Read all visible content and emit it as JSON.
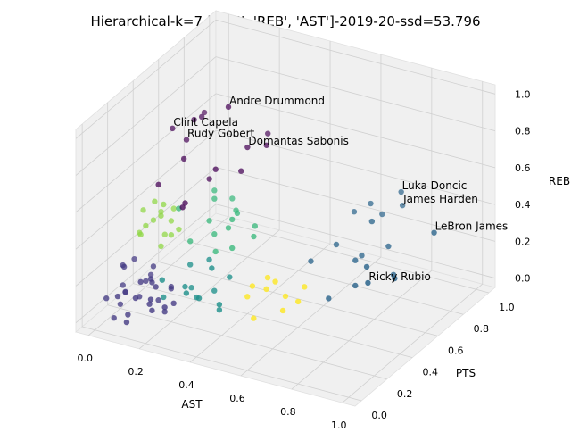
{
  "chart_data": {
    "type": "scatter3d",
    "title": "Hierarchical-k=7-['PTS', 'REB', 'AST']-2019-20-ssd=53.796",
    "xlabel": "AST",
    "ylabel": "PTS",
    "zlabel": "REB",
    "xlim": [
      -0.05,
      1.05
    ],
    "ylim": [
      -0.05,
      1.05
    ],
    "zlim": [
      -0.05,
      1.05
    ],
    "xticks": [
      {
        "value": 0,
        "label": "0.0"
      },
      0.2,
      0.4,
      0.6,
      0.8,
      {
        "value": 1,
        "label": "1.0"
      }
    ],
    "yticks": [
      {
        "value": 0,
        "label": "0.0"
      },
      0.2,
      0.4,
      0.6,
      0.8,
      {
        "value": 1,
        "label": "1.0"
      }
    ],
    "zticks": [
      {
        "value": 0,
        "label": "0.0"
      },
      0.2,
      0.4,
      0.6,
      0.8,
      {
        "value": 1,
        "label": "1.0"
      }
    ],
    "grid": true,
    "series": [
      {
        "color": "#443a83",
        "x": [
          0.02,
          0.05,
          0.08,
          0.1,
          0.12,
          0.15,
          0.18,
          0.2,
          0.22,
          0.03,
          0.06,
          0.09,
          0.13,
          0.16,
          0.19,
          0.04,
          0.07,
          0.11,
          0.14,
          0.17,
          0.21,
          0.24,
          0.01,
          0.1,
          0.05,
          0.12,
          0.08,
          0.15,
          0.18,
          0.03
        ],
        "y": [
          0.05,
          0.1,
          0.02,
          0.15,
          0.08,
          0.2,
          0.12,
          0.05,
          0.18,
          0.25,
          0.03,
          0.22,
          0.1,
          0.28,
          0.06,
          0.15,
          0.3,
          0.04,
          0.17,
          0.09,
          0.13,
          0.07,
          0.2,
          0.26,
          0.12,
          0.01,
          0.08,
          0.14,
          0.24,
          0.18
        ],
        "z": [
          0.1,
          0.05,
          0.15,
          0.08,
          0.12,
          0.05,
          0.18,
          0.1,
          0.07,
          0.2,
          0.02,
          0.12,
          0.2,
          0.08,
          0.15,
          0.22,
          0.1,
          0.05,
          0.16,
          0.1,
          0.05,
          0.12,
          0.08,
          0.18,
          0.25,
          0.03,
          0.14,
          0.2,
          0.1,
          0.06
        ]
      },
      {
        "color": "#8fd744",
        "x": [
          0.05,
          0.08,
          0.1,
          0.12,
          0.06,
          0.14,
          0.09,
          0.11,
          0.07,
          0.13,
          0.04,
          0.1,
          0.15,
          0.08,
          0.12
        ],
        "y": [
          0.25,
          0.3,
          0.35,
          0.28,
          0.4,
          0.32,
          0.22,
          0.38,
          0.33,
          0.26,
          0.3,
          0.42,
          0.36,
          0.2,
          0.3
        ],
        "z": [
          0.35,
          0.4,
          0.3,
          0.45,
          0.38,
          0.33,
          0.42,
          0.36,
          0.48,
          0.3,
          0.44,
          0.4,
          0.34,
          0.38,
          0.5
        ]
      },
      {
        "color": "#35b779",
        "x": [
          0.2,
          0.25,
          0.3,
          0.22,
          0.35,
          0.28,
          0.18,
          0.32,
          0.26,
          0.38,
          0.24,
          0.3,
          0.4,
          0.21,
          0.34
        ],
        "y": [
          0.35,
          0.4,
          0.45,
          0.5,
          0.38,
          0.55,
          0.3,
          0.48,
          0.42,
          0.5,
          0.6,
          0.35,
          0.45,
          0.52,
          0.4
        ],
        "z": [
          0.3,
          0.4,
          0.35,
          0.45,
          0.3,
          0.38,
          0.5,
          0.42,
          0.32,
          0.36,
          0.4,
          0.28,
          0.34,
          0.48,
          0.44
        ]
      },
      {
        "color": "#21918c",
        "x": [
          0.22,
          0.28,
          0.3,
          0.35,
          0.25,
          0.4,
          0.32,
          0.27,
          0.38,
          0.24,
          0.33,
          0.42,
          0.29,
          0.36
        ],
        "y": [
          0.1,
          0.15,
          0.2,
          0.12,
          0.25,
          0.18,
          0.08,
          0.22,
          0.3,
          0.05,
          0.28,
          0.14,
          0.32,
          0.2
        ],
        "z": [
          0.15,
          0.2,
          0.12,
          0.18,
          0.25,
          0.1,
          0.22,
          0.15,
          0.2,
          0.28,
          0.12,
          0.16,
          0.25,
          0.3
        ]
      },
      {
        "color": "#fde725",
        "x": [
          0.45,
          0.5,
          0.55,
          0.48,
          0.6,
          0.52,
          0.58,
          0.47,
          0.62,
          0.5
        ],
        "y": [
          0.3,
          0.35,
          0.4,
          0.28,
          0.45,
          0.38,
          0.32,
          0.42,
          0.36,
          0.25
        ],
        "z": [
          0.12,
          0.15,
          0.1,
          0.2,
          0.14,
          0.18,
          0.08,
          0.16,
          0.12,
          0.05
        ]
      },
      {
        "color": "#31688e",
        "x": [
          0.6,
          0.65,
          0.7,
          0.75,
          0.8,
          0.62,
          0.85,
          0.68,
          0.72,
          0.78,
          0.88,
          0.66,
          0.82,
          0.74
        ],
        "y": [
          0.5,
          0.6,
          0.7,
          0.55,
          0.45,
          0.8,
          0.65,
          0.9,
          0.4,
          0.75,
          0.6,
          0.85,
          0.5,
          0.7
        ],
        "z": [
          0.25,
          0.3,
          0.2,
          0.28,
          0.22,
          0.35,
          0.18,
          0.3,
          0.15,
          0.25,
          0.2,
          0.38,
          0.3,
          0.4
        ]
      },
      {
        "color": "#440154",
        "x": [
          0.1,
          0.15,
          0.2,
          0.12,
          0.25,
          0.18,
          0.08,
          0.3,
          0.22,
          0.35,
          0.14,
          0.28
        ],
        "y": [
          0.3,
          0.4,
          0.5,
          0.6,
          0.45,
          0.35,
          0.7,
          0.55,
          0.25,
          0.65,
          0.5,
          0.8
        ],
        "z": [
          0.6,
          0.7,
          0.55,
          0.8,
          0.65,
          0.5,
          0.75,
          0.6,
          0.55,
          0.7,
          0.85,
          0.65
        ]
      }
    ],
    "annotations": [
      {
        "text": "Andre Drummond",
        "color": "#440154",
        "x": 0.25,
        "y": 0.55,
        "z": 0.93
      },
      {
        "text": "Clint Capela",
        "color": "#440154",
        "x": 0.08,
        "y": 0.45,
        "z": 0.81
      },
      {
        "text": "Rudy Gobert",
        "color": "#440154",
        "x": 0.11,
        "y": 0.5,
        "z": 0.73
      },
      {
        "text": "Domantas Sabonis",
        "color": "#440154",
        "x": 0.3,
        "y": 0.6,
        "z": 0.7
      },
      {
        "text": "Luka Doncic",
        "color": "#31688e",
        "x": 0.73,
        "y": 0.95,
        "z": 0.41
      },
      {
        "text": "James Harden",
        "color": "#31688e",
        "x": 0.71,
        "y": 1.0,
        "z": 0.3
      },
      {
        "text": "LeBron James",
        "color": "#31688e",
        "x": 0.96,
        "y": 0.75,
        "z": 0.39
      },
      {
        "text": "Ricky Rubio",
        "color": "#31688e",
        "x": 0.9,
        "y": 0.35,
        "z": 0.33
      }
    ]
  }
}
